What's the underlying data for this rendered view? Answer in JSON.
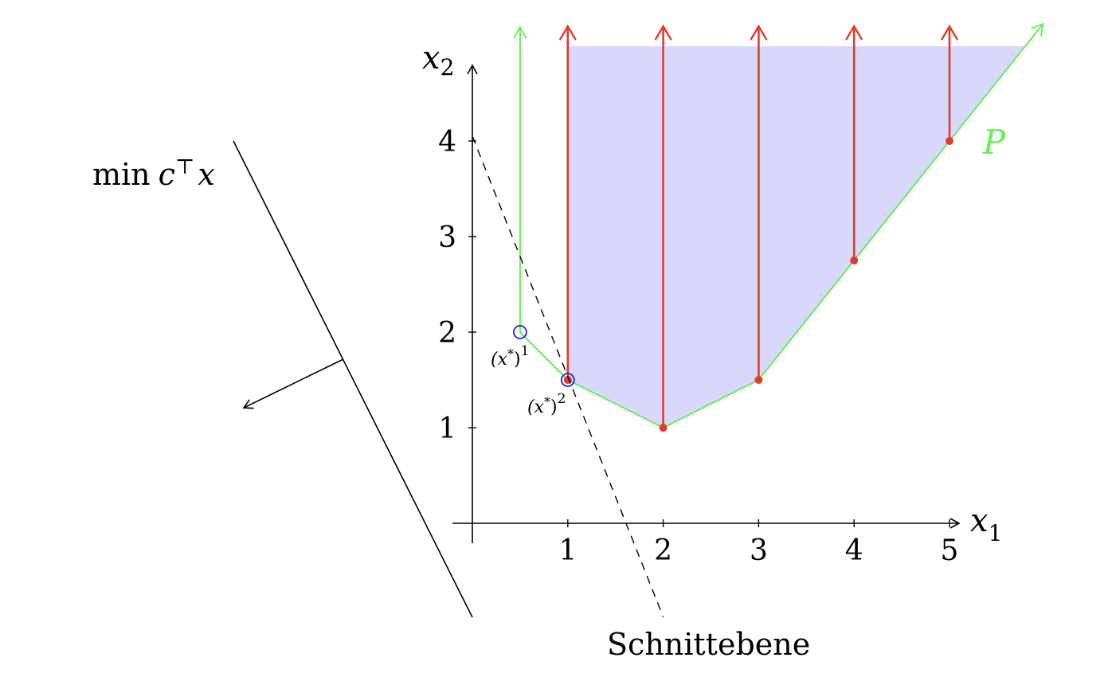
{
  "objective": {
    "label_min": "min",
    "label_c": "c",
    "label_transpose": "⊤",
    "label_x": "x"
  },
  "axes": {
    "x_label_main": "x",
    "x_label_sub": "1",
    "y_label_main": "x",
    "y_label_sub": "2",
    "x_ticks": [
      "1",
      "2",
      "3",
      "4",
      "5"
    ],
    "y_ticks": [
      "1",
      "2",
      "3",
      "4"
    ]
  },
  "polyhedron": {
    "label": "P",
    "vertices": [
      [
        0.5,
        2
      ],
      [
        1,
        1.5
      ],
      [
        2,
        1
      ],
      [
        3,
        1.5
      ],
      [
        5,
        4
      ]
    ],
    "recession_direction": [
      0,
      1
    ],
    "color": "#66ee55"
  },
  "integer_hull": {
    "points": [
      [
        1,
        1.5
      ],
      [
        2,
        1
      ],
      [
        3,
        1.5
      ],
      [
        4,
        2.75
      ],
      [
        5,
        4
      ]
    ],
    "fill": "#d8d8fa"
  },
  "rays": {
    "x_values": [
      1,
      2,
      3,
      4,
      5
    ],
    "color": "#e23a2e"
  },
  "optima": {
    "first": {
      "label_main": "(x",
      "label_star": "*",
      "label_close": ")",
      "label_sup": "1",
      "point": [
        0.5,
        2
      ]
    },
    "second": {
      "label_main": "(x",
      "label_star": "*",
      "label_close": ")",
      "label_sup": "2",
      "point": [
        1,
        1.5
      ]
    },
    "color": "#2020dd"
  },
  "cut": {
    "label": "Schnittebene",
    "through": [
      [
        0,
        4.05
      ],
      [
        2,
        -0.98
      ]
    ]
  },
  "colors": {
    "axis": "#000000",
    "objective_line": "#000000",
    "cut_line": "#000000"
  }
}
